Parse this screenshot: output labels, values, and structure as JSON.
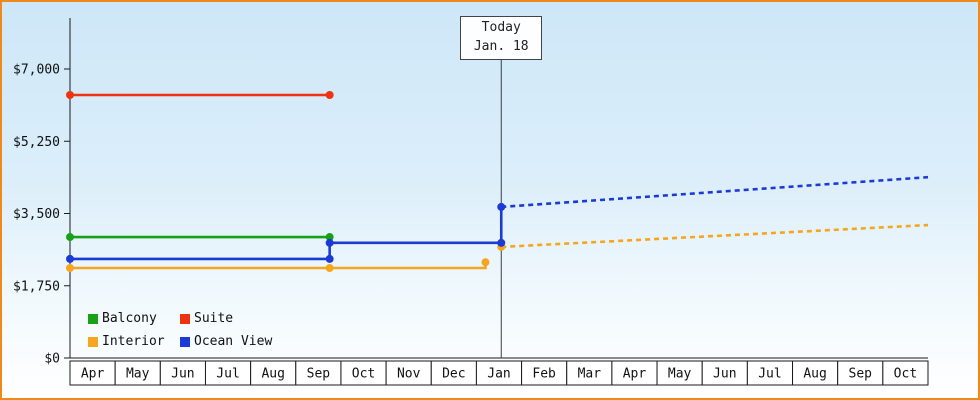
{
  "frame": {
    "border_color": "#ef8a1a"
  },
  "chart_data": {
    "type": "line",
    "grid": false,
    "legend_position": "bottom-left",
    "ylim": [
      0,
      7000
    ],
    "yticks": [
      {
        "value": 0,
        "label": "$0"
      },
      {
        "value": 1750,
        "label": "$1,750"
      },
      {
        "value": 3500,
        "label": "$3,500"
      },
      {
        "value": 5250,
        "label": "$5,250"
      },
      {
        "value": 7000,
        "label": "$7,000"
      }
    ],
    "x_months": [
      "Apr",
      "May",
      "Jun",
      "Jul",
      "Aug",
      "Sep",
      "Oct",
      "Nov",
      "Dec",
      "Jan",
      "Feb",
      "Mar",
      "Apr",
      "May",
      "Jun",
      "Jul",
      "Aug",
      "Sep",
      "Oct"
    ],
    "today": {
      "line1": "Today",
      "line2": "Jan. 18",
      "x_month": 9.55
    },
    "series": [
      {
        "name": "Balcony",
        "color": "#16a116",
        "segments": [
          {
            "style": "solid",
            "points": [
              [
                0,
                2930
              ],
              [
                5.75,
                2930
              ]
            ],
            "markers": [
              0,
              1
            ]
          }
        ]
      },
      {
        "name": "Suite",
        "color": "#ee3311",
        "segments": [
          {
            "style": "solid",
            "points": [
              [
                0,
                6370
              ],
              [
                5.75,
                6370
              ]
            ],
            "markers": [
              0,
              1
            ]
          }
        ]
      },
      {
        "name": "Interior",
        "color": "#f6a51f",
        "segments": [
          {
            "style": "solid",
            "points": [
              [
                0,
                2180
              ],
              [
                5.75,
                2180
              ],
              [
                9.2,
                2180
              ],
              [
                9.2,
                2320
              ]
            ],
            "markers": [
              0,
              1,
              3
            ]
          },
          {
            "style": "dashed",
            "points": [
              [
                9.55,
                2690
              ],
              [
                19,
                3220
              ]
            ],
            "markers": [
              0
            ]
          }
        ]
      },
      {
        "name": "Ocean View",
        "color": "#1b3ad6",
        "segments": [
          {
            "style": "solid",
            "points": [
              [
                0,
                2400
              ],
              [
                5.75,
                2400
              ],
              [
                5.75,
                2790
              ],
              [
                9.55,
                2790
              ],
              [
                9.55,
                3660
              ]
            ],
            "markers": [
              0,
              1,
              2,
              3,
              4
            ]
          },
          {
            "style": "dashed",
            "points": [
              [
                9.55,
                3660
              ],
              [
                19,
                4380
              ]
            ],
            "markers": []
          }
        ]
      }
    ],
    "legend": [
      {
        "label": "Balcony",
        "color": "#16a116"
      },
      {
        "label": "Suite",
        "color": "#ee3311"
      },
      {
        "label": "Interior",
        "color": "#f6a51f"
      },
      {
        "label": "Ocean View",
        "color": "#1b3ad6"
      }
    ]
  }
}
